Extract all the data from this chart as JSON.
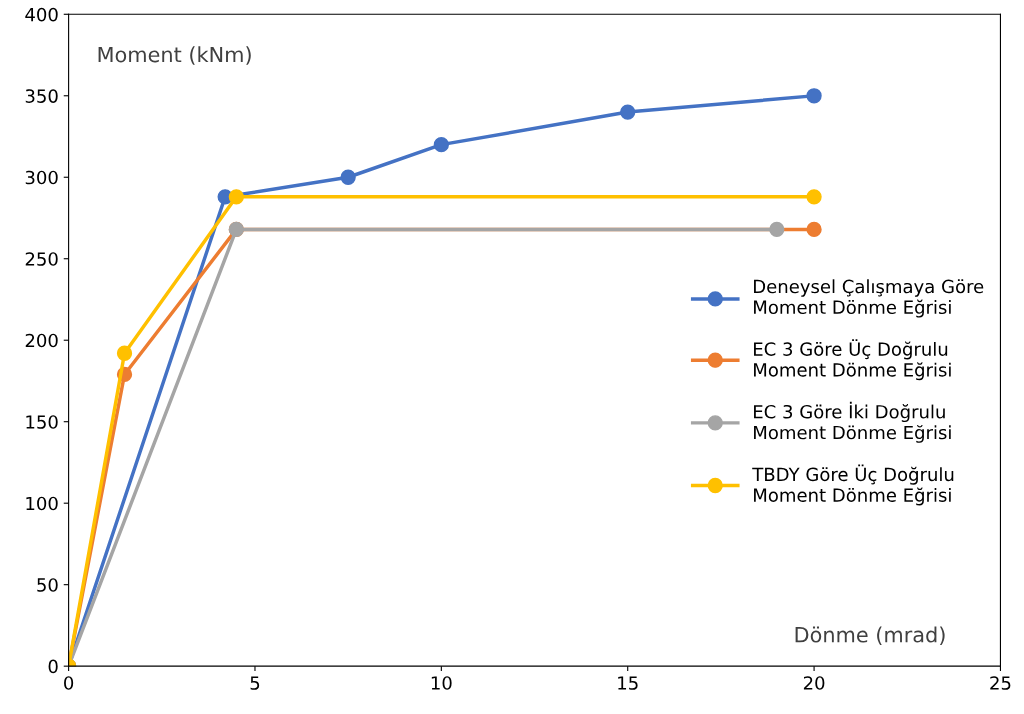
{
  "chart_data": {
    "type": "line",
    "xlabel": "Dönme (mrad)",
    "ylabel": "Moment (kNm)",
    "xlim": [
      0,
      25
    ],
    "xticks": [
      0,
      5,
      10,
      15,
      20,
      25
    ],
    "ylim": [
      0,
      400
    ],
    "yticks": [
      0,
      50,
      100,
      150,
      200,
      250,
      300,
      350,
      400
    ],
    "grid": false,
    "legend": "right",
    "marker": "circle",
    "line_style": "solid",
    "series": [
      {
        "name": "Deneysel Çalışmaya Göre\nMoment Dönme Eğrisi",
        "color": "#4472c4",
        "x": [
          0,
          4.2,
          7.5,
          10,
          15,
          20
        ],
        "values": [
          0,
          288,
          300,
          320,
          340,
          350
        ]
      },
      {
        "name": "EC 3 Göre Üç Doğrulu\nMoment Dönme Eğrisi",
        "color": "#ed7d31",
        "x": [
          0,
          1.5,
          4.5,
          20
        ],
        "values": [
          0,
          179,
          268,
          268
        ]
      },
      {
        "name": "EC 3 Göre İki Doğrulu\nMoment Dönme Eğrisi",
        "color": "#a5a5a5",
        "x": [
          0,
          4.5,
          19
        ],
        "values": [
          0,
          268,
          268
        ]
      },
      {
        "name": "TBDY Göre Üç Doğrulu\nMoment Dönme Eğrisi",
        "color": "#ffc000",
        "x": [
          0,
          1.5,
          4.5,
          20
        ],
        "values": [
          0,
          192,
          288,
          288
        ]
      }
    ]
  }
}
